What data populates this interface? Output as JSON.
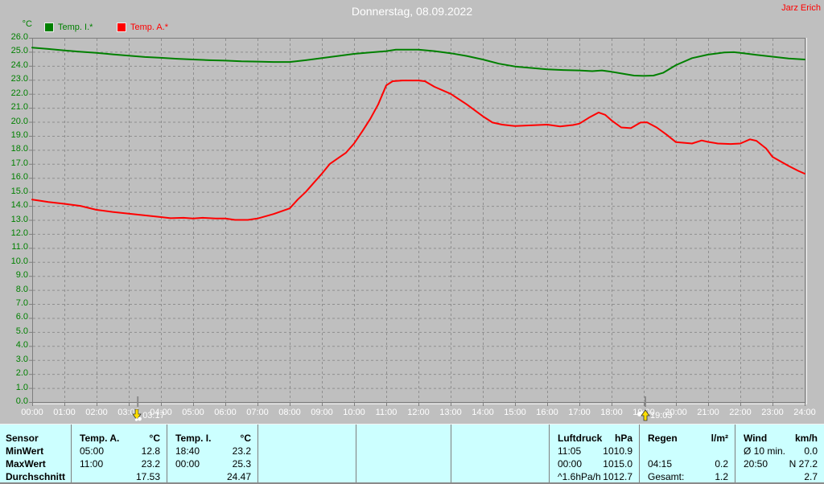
{
  "window": {
    "title": "Donnerstag, 08.09.2022",
    "watermark": "Jarz Erich"
  },
  "chart_data": {
    "type": "line",
    "title": "Donnerstag, 08.09.2022",
    "grid": "dashed",
    "legend_position": "top-left",
    "y_axis": {
      "unit": "°C",
      "min": 0,
      "max": 26,
      "step": 1,
      "tick_labels": [
        "26.0",
        "25.0",
        "24.0",
        "23.0",
        "22.0",
        "21.0",
        "20.0",
        "19.0",
        "18.0",
        "17.0",
        "16.0",
        "15.0",
        "14.0",
        "13.0",
        "12.0",
        "11.0",
        "10.0",
        "9.0",
        "8.0",
        "7.0",
        "6.0",
        "5.0",
        "4.0",
        "3.0",
        "2.0",
        "1.0",
        "0.0"
      ]
    },
    "x_axis": {
      "min_hour": 0,
      "max_hour": 24,
      "tick_labels": [
        "00:00",
        "01:00",
        "02:00",
        "03:00",
        "04:00",
        "05:00",
        "06:00",
        "07:00",
        "08:00",
        "09:00",
        "10:00",
        "11:00",
        "12:00",
        "13:00",
        "14:00",
        "15:00",
        "16:00",
        "17:00",
        "18:00",
        "19:00",
        "20:00",
        "21:00",
        "22:00",
        "23:00",
        "24:00"
      ]
    },
    "legend": [
      {
        "label": "Temp. I.*",
        "color": "#008000"
      },
      {
        "label": "Temp. A.*",
        "color": "#ff0000"
      }
    ],
    "series": [
      {
        "name": "Temp. I.*",
        "color": "#008000",
        "points": [
          [
            0,
            25.3
          ],
          [
            0.5,
            25.2
          ],
          [
            1,
            25.1
          ],
          [
            1.5,
            25.0
          ],
          [
            2,
            24.92
          ],
          [
            2.5,
            24.82
          ],
          [
            3,
            24.72
          ],
          [
            3.5,
            24.63
          ],
          [
            4,
            24.57
          ],
          [
            4.5,
            24.5
          ],
          [
            5,
            24.45
          ],
          [
            5.5,
            24.4
          ],
          [
            6,
            24.37
          ],
          [
            6.5,
            24.32
          ],
          [
            7,
            24.3
          ],
          [
            7.5,
            24.27
          ],
          [
            8,
            24.27
          ],
          [
            8.5,
            24.4
          ],
          [
            9,
            24.55
          ],
          [
            9.5,
            24.7
          ],
          [
            10,
            24.85
          ],
          [
            10.5,
            24.95
          ],
          [
            11,
            25.05
          ],
          [
            11.3,
            25.15
          ],
          [
            12,
            25.15
          ],
          [
            12.5,
            25.05
          ],
          [
            13,
            24.9
          ],
          [
            13.5,
            24.7
          ],
          [
            14,
            24.45
          ],
          [
            14.5,
            24.15
          ],
          [
            15,
            23.95
          ],
          [
            15.5,
            23.85
          ],
          [
            16,
            23.75
          ],
          [
            16.5,
            23.7
          ],
          [
            17,
            23.67
          ],
          [
            17.4,
            23.62
          ],
          [
            17.7,
            23.67
          ],
          [
            18,
            23.57
          ],
          [
            18.4,
            23.42
          ],
          [
            18.7,
            23.3
          ],
          [
            19,
            23.28
          ],
          [
            19.3,
            23.3
          ],
          [
            19.6,
            23.5
          ],
          [
            20,
            24.05
          ],
          [
            20.5,
            24.55
          ],
          [
            21,
            24.8
          ],
          [
            21.5,
            24.95
          ],
          [
            21.8,
            24.97
          ],
          [
            22,
            24.92
          ],
          [
            22.5,
            24.78
          ],
          [
            23,
            24.65
          ],
          [
            23.5,
            24.52
          ],
          [
            24,
            24.45
          ]
        ]
      },
      {
        "name": "Temp. A.*",
        "color": "#ff0000",
        "points": [
          [
            0,
            14.45
          ],
          [
            0.3,
            14.35
          ],
          [
            0.5,
            14.28
          ],
          [
            1,
            14.15
          ],
          [
            1.5,
            14.0
          ],
          [
            2,
            13.72
          ],
          [
            2.5,
            13.57
          ],
          [
            3,
            13.45
          ],
          [
            3.5,
            13.32
          ],
          [
            4,
            13.2
          ],
          [
            4.3,
            13.12
          ],
          [
            4.7,
            13.15
          ],
          [
            5,
            13.1
          ],
          [
            5.3,
            13.15
          ],
          [
            5.7,
            13.1
          ],
          [
            6,
            13.1
          ],
          [
            6.3,
            13.0
          ],
          [
            6.7,
            13.0
          ],
          [
            7,
            13.1
          ],
          [
            7.5,
            13.42
          ],
          [
            8,
            13.82
          ],
          [
            8.25,
            14.45
          ],
          [
            8.5,
            15.0
          ],
          [
            8.75,
            15.65
          ],
          [
            9,
            16.3
          ],
          [
            9.25,
            17.0
          ],
          [
            9.5,
            17.4
          ],
          [
            9.75,
            17.8
          ],
          [
            10,
            18.45
          ],
          [
            10.25,
            19.3
          ],
          [
            10.5,
            20.2
          ],
          [
            10.75,
            21.25
          ],
          [
            11,
            22.6
          ],
          [
            11.2,
            22.9
          ],
          [
            11.5,
            22.95
          ],
          [
            12,
            22.95
          ],
          [
            12.2,
            22.9
          ],
          [
            12.5,
            22.5
          ],
          [
            13,
            22.0
          ],
          [
            13.5,
            21.25
          ],
          [
            14,
            20.4
          ],
          [
            14.3,
            19.95
          ],
          [
            14.6,
            19.8
          ],
          [
            15,
            19.7
          ],
          [
            15.5,
            19.75
          ],
          [
            16,
            19.8
          ],
          [
            16.4,
            19.67
          ],
          [
            16.8,
            19.77
          ],
          [
            17,
            19.87
          ],
          [
            17.3,
            20.3
          ],
          [
            17.6,
            20.67
          ],
          [
            17.8,
            20.5
          ],
          [
            18,
            20.1
          ],
          [
            18.3,
            19.6
          ],
          [
            18.6,
            19.55
          ],
          [
            18.9,
            19.95
          ],
          [
            19.1,
            19.97
          ],
          [
            19.4,
            19.6
          ],
          [
            19.7,
            19.1
          ],
          [
            20,
            18.55
          ],
          [
            20.5,
            18.45
          ],
          [
            20.8,
            18.67
          ],
          [
            21,
            18.57
          ],
          [
            21.3,
            18.45
          ],
          [
            21.7,
            18.42
          ],
          [
            22,
            18.45
          ],
          [
            22.3,
            18.75
          ],
          [
            22.5,
            18.65
          ],
          [
            22.8,
            18.1
          ],
          [
            23,
            17.5
          ],
          [
            23.5,
            16.85
          ],
          [
            23.8,
            16.5
          ],
          [
            24,
            16.3
          ]
        ]
      }
    ],
    "event_markers": [
      {
        "label": "03:17",
        "hour": 3.28,
        "direction": "down"
      },
      {
        "label": "19:03",
        "hour": 19.05,
        "direction": "up"
      }
    ]
  },
  "table": {
    "row_labels": [
      "Sensor",
      "MinWert",
      "MaxWert",
      "Durchschnitt"
    ],
    "columns": [
      {
        "name": "Temp. A.",
        "unit": "°C",
        "rows": [
          [
            "05:00",
            "12.8"
          ],
          [
            "11:00",
            "23.2"
          ],
          [
            "",
            "17.53"
          ]
        ]
      },
      {
        "name": "Temp. I.",
        "unit": "°C",
        "rows": [
          [
            "18:40",
            "23.2"
          ],
          [
            "00:00",
            "25.3"
          ],
          [
            "",
            "24.47"
          ]
        ]
      },
      {
        "name": "",
        "unit": "",
        "rows": [
          [
            "",
            ""
          ],
          [
            "",
            ""
          ],
          [
            "",
            ""
          ]
        ]
      },
      {
        "name": "",
        "unit": "",
        "rows": [
          [
            "",
            ""
          ],
          [
            "",
            ""
          ],
          [
            "",
            ""
          ]
        ]
      },
      {
        "name": "",
        "unit": "",
        "rows": [
          [
            "",
            ""
          ],
          [
            "",
            ""
          ],
          [
            "",
            ""
          ]
        ]
      },
      {
        "name": "Luftdruck",
        "unit": "hPa",
        "rows": [
          [
            "11:05",
            "1010.9"
          ],
          [
            "00:00",
            "1015.0"
          ],
          [
            "^1.6hPa/h",
            "1012.7"
          ]
        ]
      },
      {
        "name": "Regen",
        "unit": "l/m²",
        "rows": [
          [
            "",
            ""
          ],
          [
            "04:15",
            "0.2"
          ],
          [
            "Gesamt:",
            "1.2"
          ]
        ]
      },
      {
        "name": "Wind",
        "unit": "km/h",
        "rows": [
          [
            "Ø 10 min.",
            "0.0"
          ],
          [
            "20:50",
            "N 27.2"
          ],
          [
            "",
            "2.7"
          ]
        ]
      }
    ]
  },
  "colors": {
    "background": "#bfbfbf",
    "grid": "#8f8f8f",
    "axis": "#7e7e7e",
    "table_background": "#ccffff",
    "table_divider": "#7e7e7e",
    "title_text": "#ffffff",
    "watermark_text": "#ff0000",
    "temp_i": "#008000",
    "temp_a": "#ff0000"
  }
}
